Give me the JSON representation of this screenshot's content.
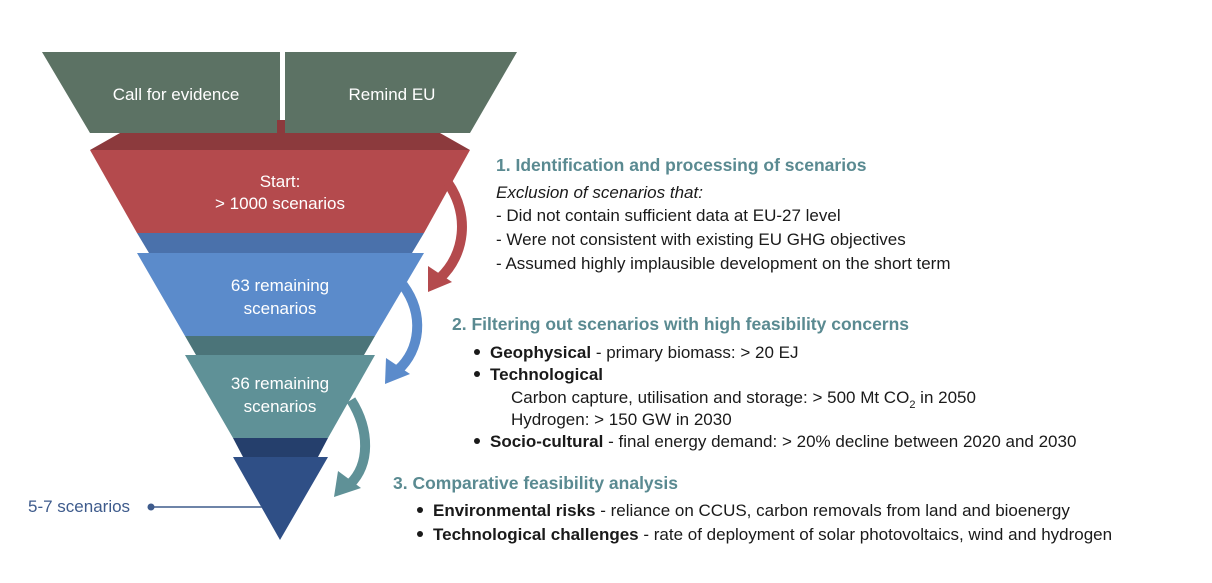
{
  "funnel": {
    "sources": [
      "Call for evidence",
      "Remind EU"
    ],
    "stages": [
      [
        "Start:",
        "> 1000 scenarios"
      ],
      [
        "63 remaining",
        "scenarios"
      ],
      [
        "36 remaining",
        "scenarios"
      ]
    ],
    "final": "5-7 scenarios"
  },
  "steps": [
    {
      "title": "1. Identification and processing of scenarios",
      "intro": "Exclusion of scenarios that:",
      "items": [
        "- Did not contain sufficient data at EU-27 level",
        "- Were not consistent with existing EU GHG objectives",
        "- Assumed highly implausible development on the short term"
      ]
    },
    {
      "title": "2. Filtering out scenarios with high feasibility concerns",
      "items": [
        {
          "term": "Geophysical",
          "text": " - primary biomass: > 20 EJ"
        },
        {
          "term": "Technological",
          "sub": [
            [
              "Carbon capture, utilisation and storage: > 500 Mt CO",
              "2",
              " in 2050"
            ],
            [
              "Hydrogen: > 150 GW in 2030"
            ]
          ]
        },
        {
          "term": "Socio-cultural",
          "text": " - final energy demand: > 20% decline between 2020 and 2030"
        }
      ]
    },
    {
      "title": "3. Comparative feasibility analysis",
      "items": [
        {
          "term": "Environmental risks",
          "text": " - reliance on CCUS, carbon removals from land and bioenergy"
        },
        {
          "term": "Technological challenges",
          "text": " - rate of deployment of solar photovoltaics, wind and hydrogen"
        }
      ]
    }
  ]
}
